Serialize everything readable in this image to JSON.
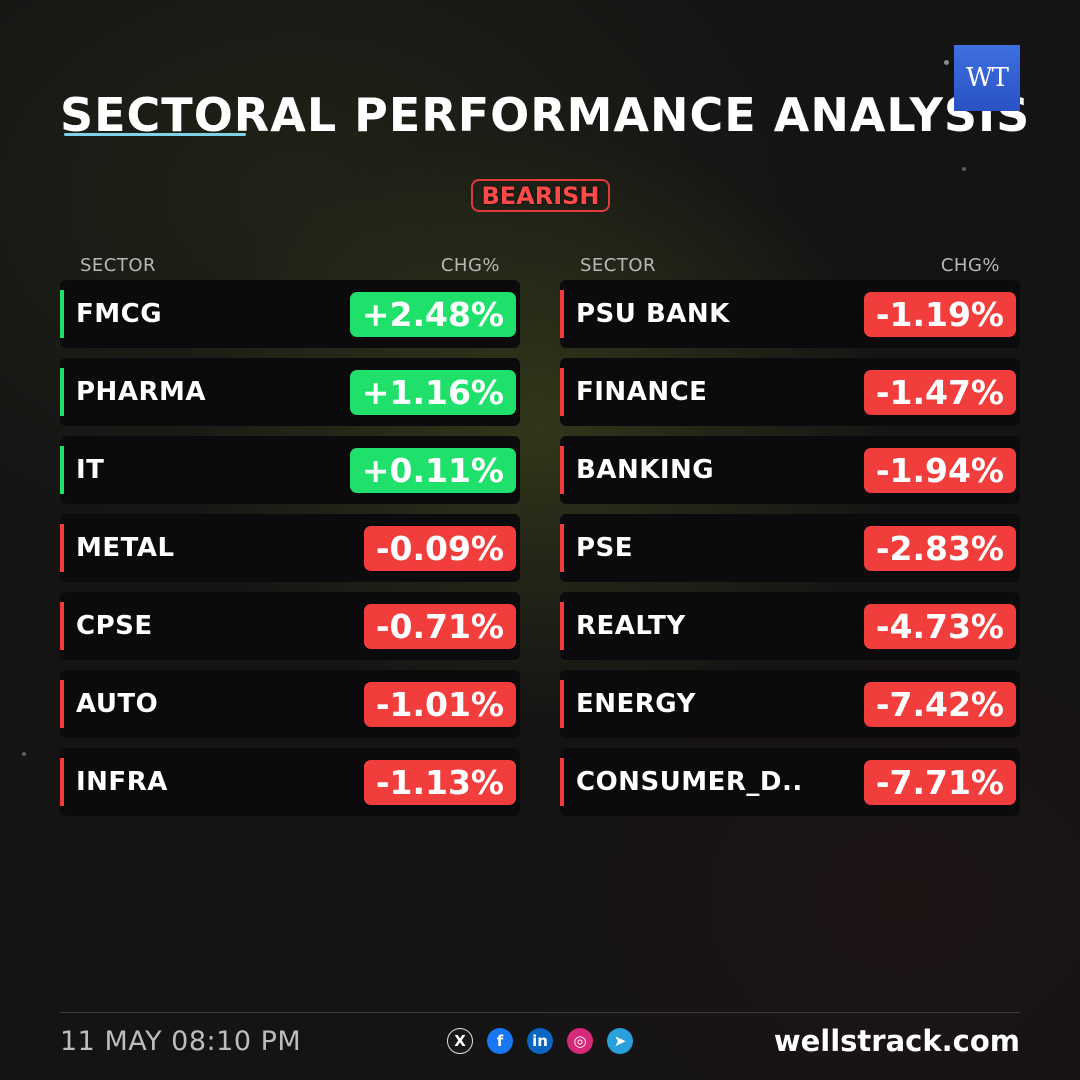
{
  "header": {
    "title": "SECTORAL PERFORMANCE ANALYSIS",
    "logo_text": "WT",
    "sentiment": "BEARISH",
    "sentiment_color": "#e03b3b"
  },
  "table": {
    "col_sector": "SECTOR",
    "col_change": "CHG%",
    "left": [
      {
        "sector": "FMCG",
        "change": "+2.48%",
        "direction": "up"
      },
      {
        "sector": "PHARMA",
        "change": "+1.16%",
        "direction": "up"
      },
      {
        "sector": "IT",
        "change": "+0.11%",
        "direction": "up"
      },
      {
        "sector": "METAL",
        "change": "-0.09%",
        "direction": "down"
      },
      {
        "sector": "CPSE",
        "change": "-0.71%",
        "direction": "down"
      },
      {
        "sector": "AUTO",
        "change": "-1.01%",
        "direction": "down"
      },
      {
        "sector": "INFRA",
        "change": "-1.13%",
        "direction": "down"
      }
    ],
    "right": [
      {
        "sector": "PSU BANK",
        "change": "-1.19%",
        "direction": "down"
      },
      {
        "sector": "FINANCE",
        "change": "-1.47%",
        "direction": "down"
      },
      {
        "sector": "BANKING",
        "change": "-1.94%",
        "direction": "down"
      },
      {
        "sector": "PSE",
        "change": "-2.83%",
        "direction": "down"
      },
      {
        "sector": "REALTY",
        "change": "-4.73%",
        "direction": "down"
      },
      {
        "sector": "ENERGY",
        "change": "-7.42%",
        "direction": "down"
      },
      {
        "sector": "CONSUMER_D..",
        "change": "-7.71%",
        "direction": "down"
      }
    ]
  },
  "colors": {
    "up": "#1fe06a",
    "down": "#f23d3d",
    "accent_underline": "#7fd1e8"
  },
  "footer": {
    "timestamp": "11 MAY 08:10 PM",
    "website": "wellstrack.com",
    "socials": [
      {
        "icon": "x-icon",
        "glyph": "X",
        "color": "#ffffff",
        "bg": "#1a1a1a"
      },
      {
        "icon": "facebook-icon",
        "glyph": "f",
        "color": "#ffffff",
        "bg": "#1877f2"
      },
      {
        "icon": "linkedin-icon",
        "glyph": "in",
        "color": "#ffffff",
        "bg": "#0a66c2"
      },
      {
        "icon": "instagram-icon",
        "glyph": "◎",
        "color": "#ffffff",
        "bg": "#d6297a"
      },
      {
        "icon": "telegram-icon",
        "glyph": "➤",
        "color": "#ffffff",
        "bg": "#29a0dc"
      }
    ]
  }
}
